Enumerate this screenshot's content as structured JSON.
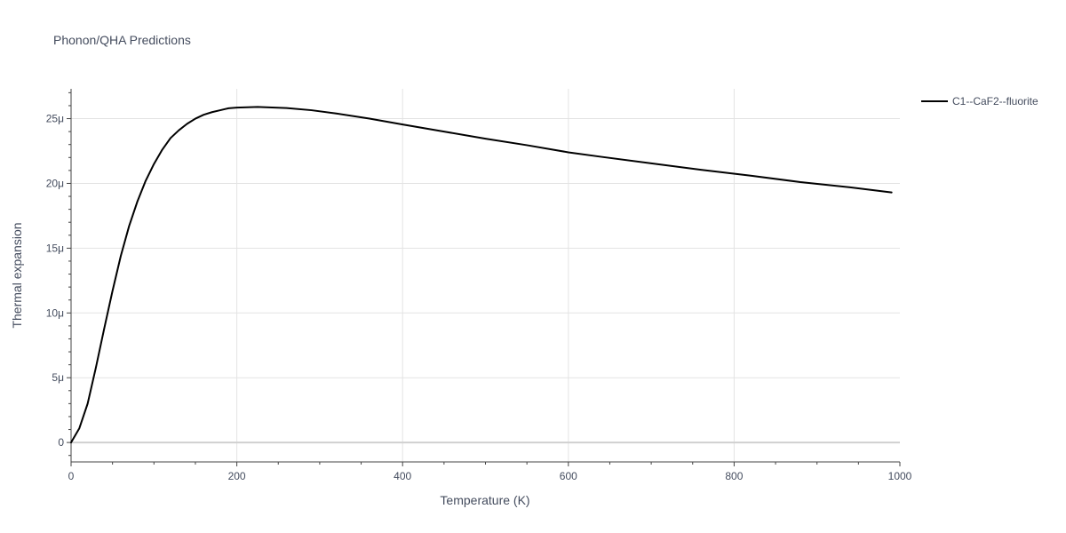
{
  "chart_data": {
    "type": "line",
    "title": "Phonon/QHA Predictions",
    "xlabel": "Temperature (K)",
    "ylabel": "Thermal expansion",
    "xlim": [
      0,
      1000
    ],
    "ylim": [
      -1.5e-06,
      2.73e-05
    ],
    "x_ticks": [
      0,
      200,
      400,
      600,
      800,
      1000
    ],
    "x_tick_labels": [
      "0",
      "200",
      "400",
      "600",
      "800",
      "1000"
    ],
    "y_ticks": [
      0,
      5e-06,
      1e-05,
      1.5e-05,
      2e-05,
      2.5e-05
    ],
    "y_tick_labels": [
      "0",
      "5μ",
      "10μ",
      "15μ",
      "20μ",
      "25μ"
    ],
    "grid": true,
    "legend_position": "top-right",
    "series": [
      {
        "name": "C1--CaF2--fluorite",
        "color": "#000000",
        "x": [
          0,
          10,
          20,
          30,
          40,
          50,
          60,
          70,
          80,
          90,
          100,
          110,
          120,
          130,
          140,
          150,
          160,
          170,
          180,
          190,
          200,
          225,
          260,
          290,
          320,
          360,
          400,
          450,
          500,
          550,
          600,
          640,
          700,
          760,
          820,
          880,
          940,
          990
        ],
        "y": [
          0,
          1.1e-06,
          3e-06,
          5.8e-06,
          8.8e-06,
          1.17e-05,
          1.44e-05,
          1.67e-05,
          1.86e-05,
          2.02e-05,
          2.15e-05,
          2.26e-05,
          2.35e-05,
          2.41e-05,
          2.46e-05,
          2.5e-05,
          2.53e-05,
          2.55e-05,
          2.565e-05,
          2.58e-05,
          2.585e-05,
          2.59e-05,
          2.582e-05,
          2.565e-05,
          2.54e-05,
          2.5e-05,
          2.455e-05,
          2.4e-05,
          2.345e-05,
          2.295e-05,
          2.24e-05,
          2.205e-05,
          2.155e-05,
          2.105e-05,
          2.06e-05,
          2.01e-05,
          1.97e-05,
          1.93e-05
        ]
      }
    ]
  }
}
